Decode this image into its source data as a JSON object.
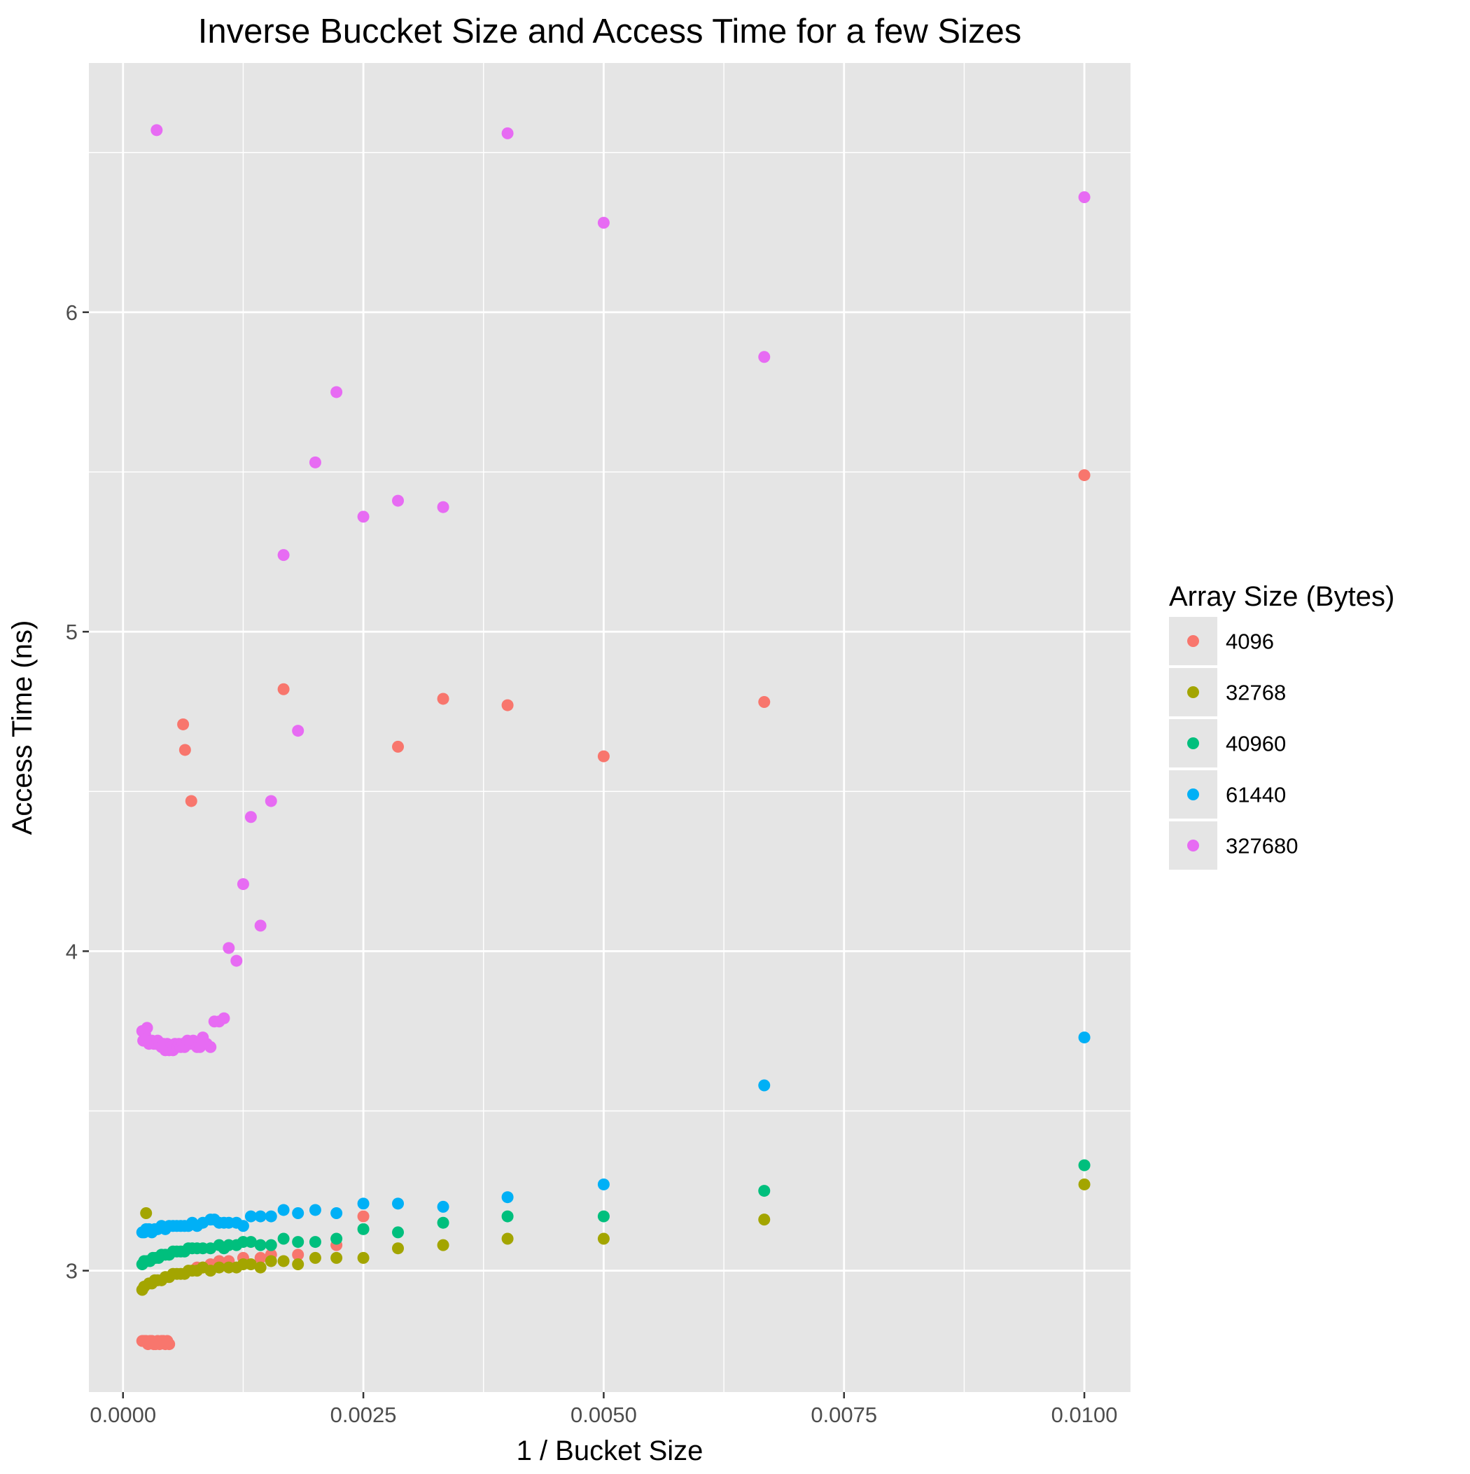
{
  "chart_data": {
    "type": "scatter",
    "title": "Inverse Buccket Size and Access Time for a few Sizes",
    "xlabel": "1 / Bucket Size",
    "ylabel": "Access Time (ns)",
    "xlim": [
      -0.000355,
      0.01048
    ],
    "ylim": [
      2.62,
      6.78
    ],
    "x_ticks": [
      0.0,
      0.0025,
      0.005,
      0.0075,
      0.01
    ],
    "x_tick_labels": [
      "0.0000",
      "0.0025",
      "0.0050",
      "0.0075",
      "0.0100"
    ],
    "y_ticks": [
      3,
      4,
      5,
      6
    ],
    "y_tick_labels": [
      "3",
      "4",
      "5",
      "6"
    ],
    "grid": true,
    "legend": {
      "title": "Array Size (Bytes)",
      "placement": "right"
    },
    "colors": {
      "panel_background": "#e5e5e5",
      "grid": "#ffffff"
    },
    "series": [
      {
        "name": "4096",
        "color": "#f8766d",
        "points": [
          [
            0.0002,
            2.78
          ],
          [
            0.00022,
            2.78
          ],
          [
            0.00024,
            2.78
          ],
          [
            0.00026,
            2.77
          ],
          [
            0.00028,
            2.78
          ],
          [
            0.0003,
            2.78
          ],
          [
            0.00032,
            2.77
          ],
          [
            0.00034,
            2.77
          ],
          [
            0.00036,
            2.78
          ],
          [
            0.00038,
            2.77
          ],
          [
            0.0004,
            2.78
          ],
          [
            0.00042,
            2.78
          ],
          [
            0.00044,
            2.77
          ],
          [
            0.00046,
            2.78
          ],
          [
            0.00048,
            2.77
          ],
          [
            0.000625,
            4.71
          ],
          [
            0.000645,
            4.63
          ],
          [
            0.00071,
            4.47
          ],
          [
            0.00077,
            3.01
          ],
          [
            0.00083,
            3.01
          ],
          [
            0.00091,
            3.02
          ],
          [
            0.001,
            3.03
          ],
          [
            0.0011,
            3.03
          ],
          [
            0.00125,
            3.04
          ],
          [
            0.00143,
            3.04
          ],
          [
            0.00154,
            3.05
          ],
          [
            0.00167,
            4.82
          ],
          [
            0.00182,
            3.05
          ],
          [
            0.00222,
            3.08
          ],
          [
            0.0025,
            3.17
          ],
          [
            0.00286,
            4.64
          ],
          [
            0.00333,
            4.79
          ],
          [
            0.004,
            4.77
          ],
          [
            0.005,
            4.61
          ],
          [
            0.00667,
            4.78
          ],
          [
            0.01,
            5.49
          ]
        ]
      },
      {
        "name": "32768",
        "color": "#a3a500",
        "points": [
          [
            0.0002,
            2.94
          ],
          [
            0.00022,
            2.95
          ],
          [
            0.00024,
            3.18
          ],
          [
            0.00027,
            2.96
          ],
          [
            0.0003,
            2.96
          ],
          [
            0.00033,
            2.97
          ],
          [
            0.00036,
            2.97
          ],
          [
            0.0004,
            2.97
          ],
          [
            0.00044,
            2.98
          ],
          [
            0.00048,
            2.98
          ],
          [
            0.00052,
            2.99
          ],
          [
            0.00056,
            2.99
          ],
          [
            0.0006,
            2.99
          ],
          [
            0.00064,
            2.99
          ],
          [
            0.00068,
            3.0
          ],
          [
            0.00072,
            3.0
          ],
          [
            0.00077,
            3.0
          ],
          [
            0.00083,
            3.01
          ],
          [
            0.00091,
            3.0
          ],
          [
            0.001,
            3.01
          ],
          [
            0.0011,
            3.01
          ],
          [
            0.00118,
            3.01
          ],
          [
            0.00125,
            3.02
          ],
          [
            0.00133,
            3.02
          ],
          [
            0.00143,
            3.01
          ],
          [
            0.00154,
            3.03
          ],
          [
            0.00167,
            3.03
          ],
          [
            0.00182,
            3.02
          ],
          [
            0.002,
            3.04
          ],
          [
            0.00222,
            3.04
          ],
          [
            0.0025,
            3.04
          ],
          [
            0.00286,
            3.07
          ],
          [
            0.00333,
            3.08
          ],
          [
            0.004,
            3.1
          ],
          [
            0.005,
            3.1
          ],
          [
            0.00667,
            3.16
          ],
          [
            0.01,
            3.27
          ]
        ]
      },
      {
        "name": "40960",
        "color": "#00bf7d",
        "points": [
          [
            0.0002,
            3.02
          ],
          [
            0.00022,
            3.03
          ],
          [
            0.00025,
            3.03
          ],
          [
            0.00028,
            3.03
          ],
          [
            0.00031,
            3.04
          ],
          [
            0.00034,
            3.04
          ],
          [
            0.00037,
            3.04
          ],
          [
            0.0004,
            3.05
          ],
          [
            0.00044,
            3.05
          ],
          [
            0.00048,
            3.05
          ],
          [
            0.00052,
            3.06
          ],
          [
            0.00056,
            3.06
          ],
          [
            0.0006,
            3.06
          ],
          [
            0.00064,
            3.06
          ],
          [
            0.00068,
            3.07
          ],
          [
            0.00072,
            3.07
          ],
          [
            0.00077,
            3.07
          ],
          [
            0.00083,
            3.07
          ],
          [
            0.00091,
            3.07
          ],
          [
            0.001,
            3.08
          ],
          [
            0.00105,
            3.07
          ],
          [
            0.0011,
            3.08
          ],
          [
            0.00118,
            3.08
          ],
          [
            0.00125,
            3.09
          ],
          [
            0.00133,
            3.09
          ],
          [
            0.00143,
            3.08
          ],
          [
            0.00154,
            3.08
          ],
          [
            0.00167,
            3.1
          ],
          [
            0.00182,
            3.09
          ],
          [
            0.002,
            3.09
          ],
          [
            0.00222,
            3.1
          ],
          [
            0.0025,
            3.13
          ],
          [
            0.00286,
            3.12
          ],
          [
            0.00333,
            3.15
          ],
          [
            0.004,
            3.17
          ],
          [
            0.005,
            3.17
          ],
          [
            0.00667,
            3.25
          ],
          [
            0.01,
            3.33
          ]
        ]
      },
      {
        "name": "61440",
        "color": "#00b0f6",
        "points": [
          [
            0.0002,
            3.12
          ],
          [
            0.00022,
            3.12
          ],
          [
            0.00024,
            3.13
          ],
          [
            0.00027,
            3.13
          ],
          [
            0.0003,
            3.12
          ],
          [
            0.00033,
            3.13
          ],
          [
            0.00036,
            3.13
          ],
          [
            0.0004,
            3.14
          ],
          [
            0.00044,
            3.13
          ],
          [
            0.00048,
            3.14
          ],
          [
            0.00052,
            3.14
          ],
          [
            0.00056,
            3.14
          ],
          [
            0.0006,
            3.14
          ],
          [
            0.00064,
            3.14
          ],
          [
            0.00068,
            3.14
          ],
          [
            0.00072,
            3.15
          ],
          [
            0.00077,
            3.14
          ],
          [
            0.00083,
            3.15
          ],
          [
            0.00091,
            3.16
          ],
          [
            0.00095,
            3.16
          ],
          [
            0.001,
            3.15
          ],
          [
            0.00105,
            3.15
          ],
          [
            0.0011,
            3.15
          ],
          [
            0.00118,
            3.15
          ],
          [
            0.00125,
            3.14
          ],
          [
            0.00133,
            3.17
          ],
          [
            0.00143,
            3.17
          ],
          [
            0.00154,
            3.17
          ],
          [
            0.00167,
            3.19
          ],
          [
            0.00182,
            3.18
          ],
          [
            0.002,
            3.19
          ],
          [
            0.00222,
            3.18
          ],
          [
            0.0025,
            3.21
          ],
          [
            0.00286,
            3.21
          ],
          [
            0.00333,
            3.2
          ],
          [
            0.004,
            3.23
          ],
          [
            0.005,
            3.27
          ],
          [
            0.00667,
            3.58
          ],
          [
            0.01,
            3.73
          ]
        ]
      },
      {
        "name": "327680",
        "color": "#e76bf3",
        "points": [
          [
            0.0002,
            3.75
          ],
          [
            0.00021,
            3.72
          ],
          [
            0.00023,
            3.74
          ],
          [
            0.00025,
            3.76
          ],
          [
            0.00027,
            3.71
          ],
          [
            0.0003,
            3.72
          ],
          [
            0.00032,
            3.71
          ],
          [
            0.00034,
            3.71
          ],
          [
            0.00036,
            3.72
          ],
          [
            0.00038,
            3.71
          ],
          [
            0.0004,
            3.7
          ],
          [
            0.00042,
            3.71
          ],
          [
            0.00044,
            3.69
          ],
          [
            0.00046,
            3.71
          ],
          [
            0.00048,
            3.69
          ],
          [
            0.0005,
            3.7
          ],
          [
            0.00052,
            3.69
          ],
          [
            0.00054,
            3.71
          ],
          [
            0.00056,
            3.7
          ],
          [
            0.00058,
            3.71
          ],
          [
            0.0006,
            3.7
          ],
          [
            0.00062,
            3.71
          ],
          [
            0.00064,
            3.7
          ],
          [
            0.00067,
            3.72
          ],
          [
            0.0007,
            3.71
          ],
          [
            0.00073,
            3.72
          ],
          [
            0.00077,
            3.7
          ],
          [
            0.0008,
            3.7
          ],
          [
            0.00083,
            3.73
          ],
          [
            0.00087,
            3.71
          ],
          [
            0.00091,
            3.7
          ],
          [
            0.00095,
            3.78
          ],
          [
            0.001,
            3.78
          ],
          [
            0.00105,
            3.79
          ],
          [
            0.0011,
            4.01
          ],
          [
            0.00118,
            3.97
          ],
          [
            0.00125,
            4.21
          ],
          [
            0.00133,
            4.42
          ],
          [
            0.00143,
            4.08
          ],
          [
            0.00154,
            4.47
          ],
          [
            0.00167,
            5.24
          ],
          [
            0.00182,
            4.69
          ],
          [
            0.002,
            5.53
          ],
          [
            0.00222,
            5.75
          ],
          [
            0.0025,
            5.36
          ],
          [
            0.00286,
            5.41
          ],
          [
            0.00333,
            5.39
          ],
          [
            0.004,
            6.56
          ],
          [
            0.005,
            6.28
          ],
          [
            0.00667,
            5.86
          ],
          [
            0.00035,
            6.57
          ],
          [
            0.01,
            6.36
          ]
        ]
      }
    ]
  }
}
